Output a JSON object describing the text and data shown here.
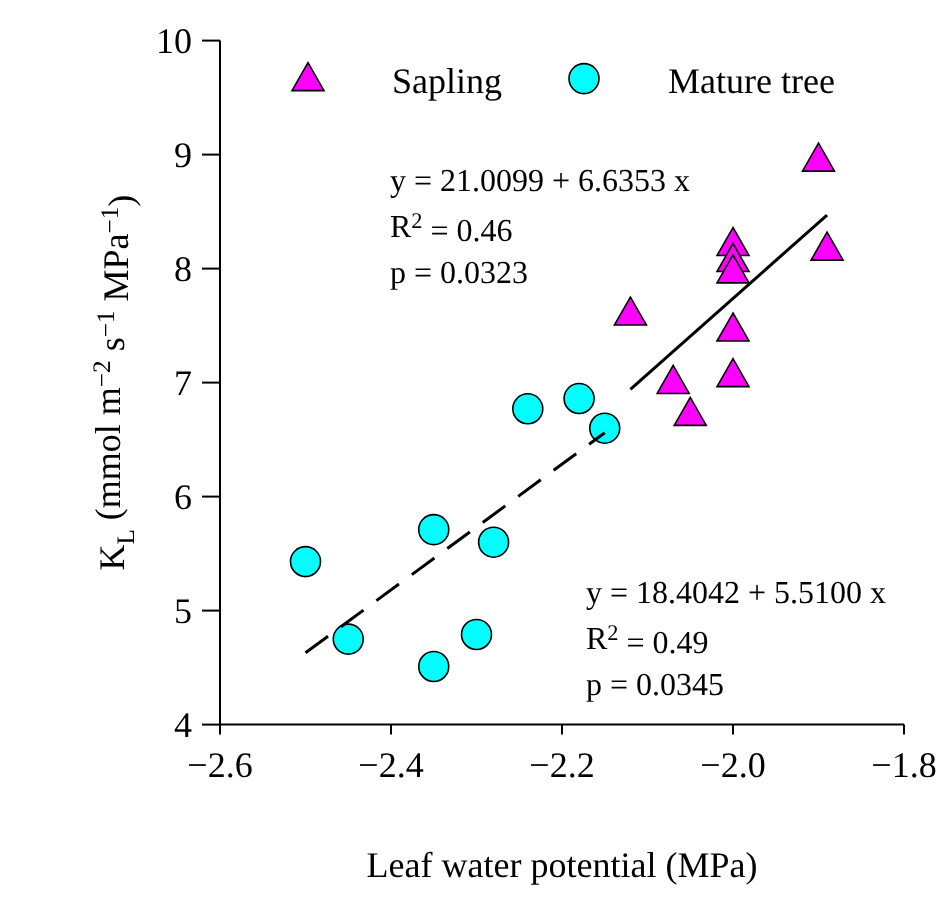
{
  "chart_data": {
    "type": "scatter",
    "xlabel": "Leaf water potential (MPa)",
    "ylabel": "K$_{L}$ (mmol m$^{−2}$ s$^{−1}$ MPa$^{−1}$)",
    "xlim": [
      -2.6,
      -1.8
    ],
    "xticks": [
      {
        "value": -2.6,
        "label": "−2.6"
      },
      {
        "value": -2.4,
        "label": "−2.4"
      },
      {
        "value": -2.2,
        "label": "−2.2"
      },
      {
        "value": -2.0,
        "label": "−2.0"
      },
      {
        "value": -1.8,
        "label": "−1.8"
      }
    ],
    "ylim": [
      4,
      10
    ],
    "yticks": [
      4,
      5,
      6,
      7,
      8,
      9,
      10
    ],
    "grid": false,
    "legend": "top",
    "series": [
      {
        "name": "Sapling",
        "color": "#ff00ff",
        "marker": "triangle",
        "x": [
          -1.9,
          -1.89,
          -2.0,
          -2.0,
          -2.0,
          -2.0,
          -2.0,
          -2.12,
          -2.07,
          -2.05
        ],
        "values": [
          8.96,
          8.18,
          8.22,
          8.08,
          7.98,
          7.47,
          7.07,
          7.61,
          7.01,
          6.73
        ]
      },
      {
        "name": "Mature tree",
        "color": "#00ffff",
        "marker": "circle",
        "x": [
          -2.5,
          -2.45,
          -2.35,
          -2.35,
          -2.28,
          -2.3,
          -2.24,
          -2.18,
          -2.15
        ],
        "values": [
          5.43,
          4.75,
          5.71,
          4.51,
          5.6,
          4.79,
          6.77,
          6.86,
          6.6
        ]
      },
      {
        "type": "line",
        "color": "#000000",
        "line_style": "solid",
        "marker": "none",
        "x": [
          -2.12,
          -1.89
        ],
        "values": [
          6.94,
          8.47
        ]
      },
      {
        "type": "line",
        "color": "#000000",
        "line_style": "dashed",
        "marker": "none",
        "x": [
          -2.5,
          -2.15
        ],
        "values": [
          4.63,
          6.56
        ]
      }
    ],
    "annotations": [
      "y = 21.0099 + 6.6353 x",
      "R$^{2}$ = 0.46",
      "p = 0.0323",
      "y = 18.4042 + 5.5100 x",
      "R$^{2}$ = 0.49",
      "p = 0.0345"
    ]
  }
}
